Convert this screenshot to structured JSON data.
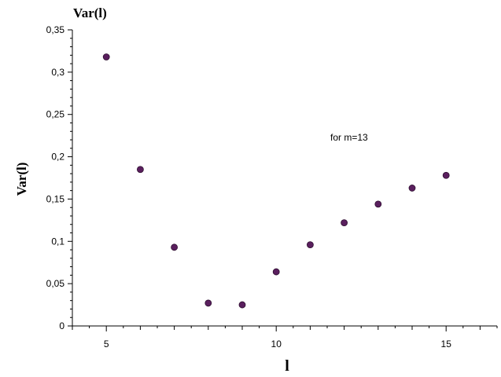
{
  "chart_data": {
    "type": "scatter",
    "title": "",
    "xlabel": "l",
    "ylabel": "Var(l)",
    "y_axis_top_label": "Var(l)",
    "annotation": "for m=13",
    "xlim": [
      4,
      16.5
    ],
    "ylim": [
      0,
      0.35
    ],
    "x_ticks": [
      5,
      10,
      15
    ],
    "x_tick_labels": [
      "5",
      "10",
      "15"
    ],
    "y_ticks": [
      0,
      0.05,
      0.1,
      0.15,
      0.2,
      0.25,
      0.3,
      0.35
    ],
    "y_tick_labels": [
      "0",
      "0,05",
      "0,1",
      "0,15",
      "0,2",
      "0,25",
      "0,3",
      "0,35"
    ],
    "grid": false,
    "point_color": "#5a1f5e",
    "x": [
      5,
      6,
      7,
      8,
      9,
      10,
      11,
      12,
      13,
      14,
      15
    ],
    "y": [
      0.318,
      0.185,
      0.093,
      0.027,
      0.025,
      0.064,
      0.096,
      0.122,
      0.144,
      0.163,
      0.178
    ]
  }
}
